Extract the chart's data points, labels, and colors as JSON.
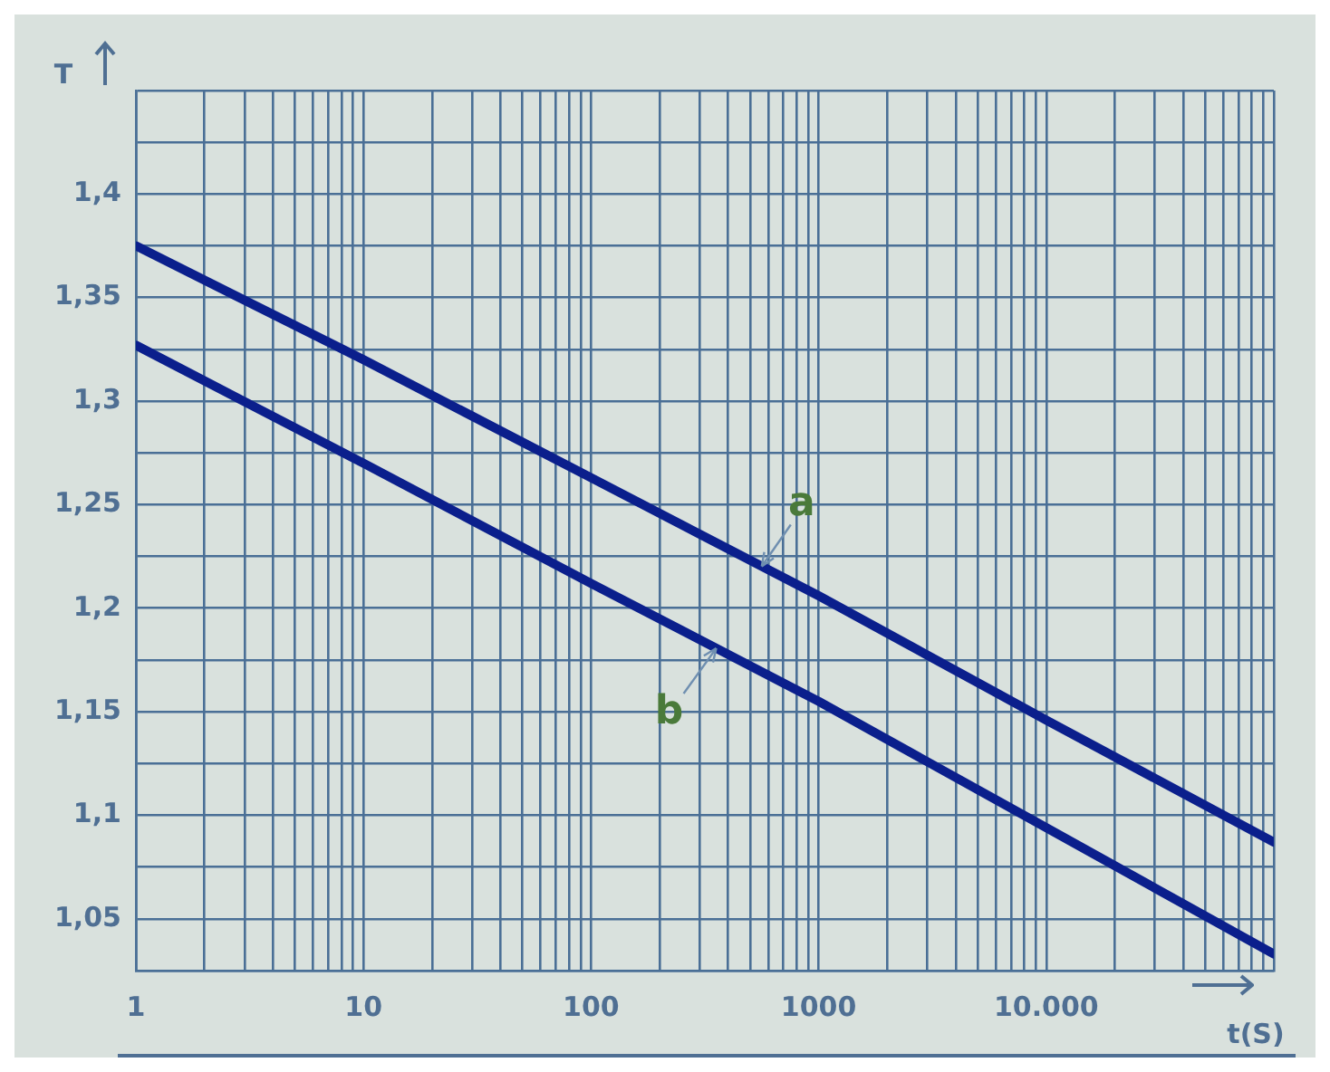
{
  "chart_data": {
    "type": "line",
    "xlabel": "t(S)",
    "ylabel": "T",
    "log": "x",
    "grid": true,
    "legend": false,
    "marker": "none",
    "line_style": "solid",
    "x": [
      1,
      10,
      100,
      1000,
      10000,
      100000
    ],
    "series": [
      {
        "name": "a",
        "color": "#0b1f8c",
        "values": [
          1.375,
          1.32,
          1.263,
          1.206,
          1.146,
          1.087
        ]
      },
      {
        "name": "b",
        "color": "#0b1f8c",
        "values": [
          1.327,
          1.27,
          1.212,
          1.155,
          1.094,
          1.033
        ]
      }
    ],
    "xlim": [
      1,
      100000
    ],
    "ylim": [
      1.025,
      1.45
    ],
    "xticks": [
      1,
      {
        "value": 2,
        "label": null
      },
      {
        "value": 3,
        "label": null
      },
      {
        "value": 4,
        "label": null
      },
      {
        "value": 5,
        "label": null
      },
      {
        "value": 6,
        "label": null
      },
      {
        "value": 7,
        "label": null
      },
      {
        "value": 8,
        "label": null
      },
      {
        "value": 9,
        "label": null
      },
      10,
      {
        "value": 20,
        "label": null
      },
      {
        "value": 30,
        "label": null
      },
      {
        "value": 40,
        "label": null
      },
      {
        "value": 50,
        "label": null
      },
      {
        "value": 60,
        "label": null
      },
      {
        "value": 70,
        "label": null
      },
      {
        "value": 80,
        "label": null
      },
      {
        "value": 90,
        "label": null
      },
      100,
      {
        "value": 200,
        "label": null
      },
      {
        "value": 300,
        "label": null
      },
      {
        "value": 400,
        "label": null
      },
      {
        "value": 500,
        "label": null
      },
      {
        "value": 600,
        "label": null
      },
      {
        "value": 700,
        "label": null
      },
      {
        "value": 800,
        "label": null
      },
      {
        "value": 900,
        "label": null
      },
      1000,
      {
        "value": 2000,
        "label": null
      },
      {
        "value": 3000,
        "label": null
      },
      {
        "value": 4000,
        "label": null
      },
      {
        "value": 5000,
        "label": null
      },
      {
        "value": 6000,
        "label": null
      },
      {
        "value": 7000,
        "label": null
      },
      {
        "value": 8000,
        "label": null
      },
      {
        "value": 9000,
        "label": null
      },
      {
        "value": 10000,
        "label": "10.000"
      },
      {
        "value": 20000,
        "label": null
      },
      {
        "value": 30000,
        "label": null
      },
      {
        "value": 40000,
        "label": null
      },
      {
        "value": 50000,
        "label": null
      },
      {
        "value": 60000,
        "label": null
      },
      {
        "value": 70000,
        "label": null
      },
      {
        "value": 80000,
        "label": null
      },
      {
        "value": 90000,
        "label": null
      },
      {
        "value": 100000,
        "label": null
      }
    ],
    "yticks": [
      {
        "value": 1.025,
        "label": null
      },
      {
        "value": 1.05,
        "label": "1,05"
      },
      {
        "value": 1.075,
        "label": null
      },
      {
        "value": 1.1,
        "label": "1,1"
      },
      {
        "value": 1.125,
        "label": null
      },
      {
        "value": 1.15,
        "label": "1,15"
      },
      {
        "value": 1.175,
        "label": null
      },
      {
        "value": 1.2,
        "label": "1,2"
      },
      {
        "value": 1.225,
        "label": null
      },
      {
        "value": 1.25,
        "label": "1,25"
      },
      {
        "value": 1.275,
        "label": null
      },
      {
        "value": 1.3,
        "label": "1,3"
      },
      {
        "value": 1.325,
        "label": null
      },
      {
        "value": 1.35,
        "label": "1,35"
      },
      {
        "value": 1.375,
        "label": null
      },
      {
        "value": 1.4,
        "label": "1,4"
      },
      {
        "value": 1.425,
        "label": null
      },
      {
        "value": 1.45,
        "label": null
      }
    ]
  }
}
